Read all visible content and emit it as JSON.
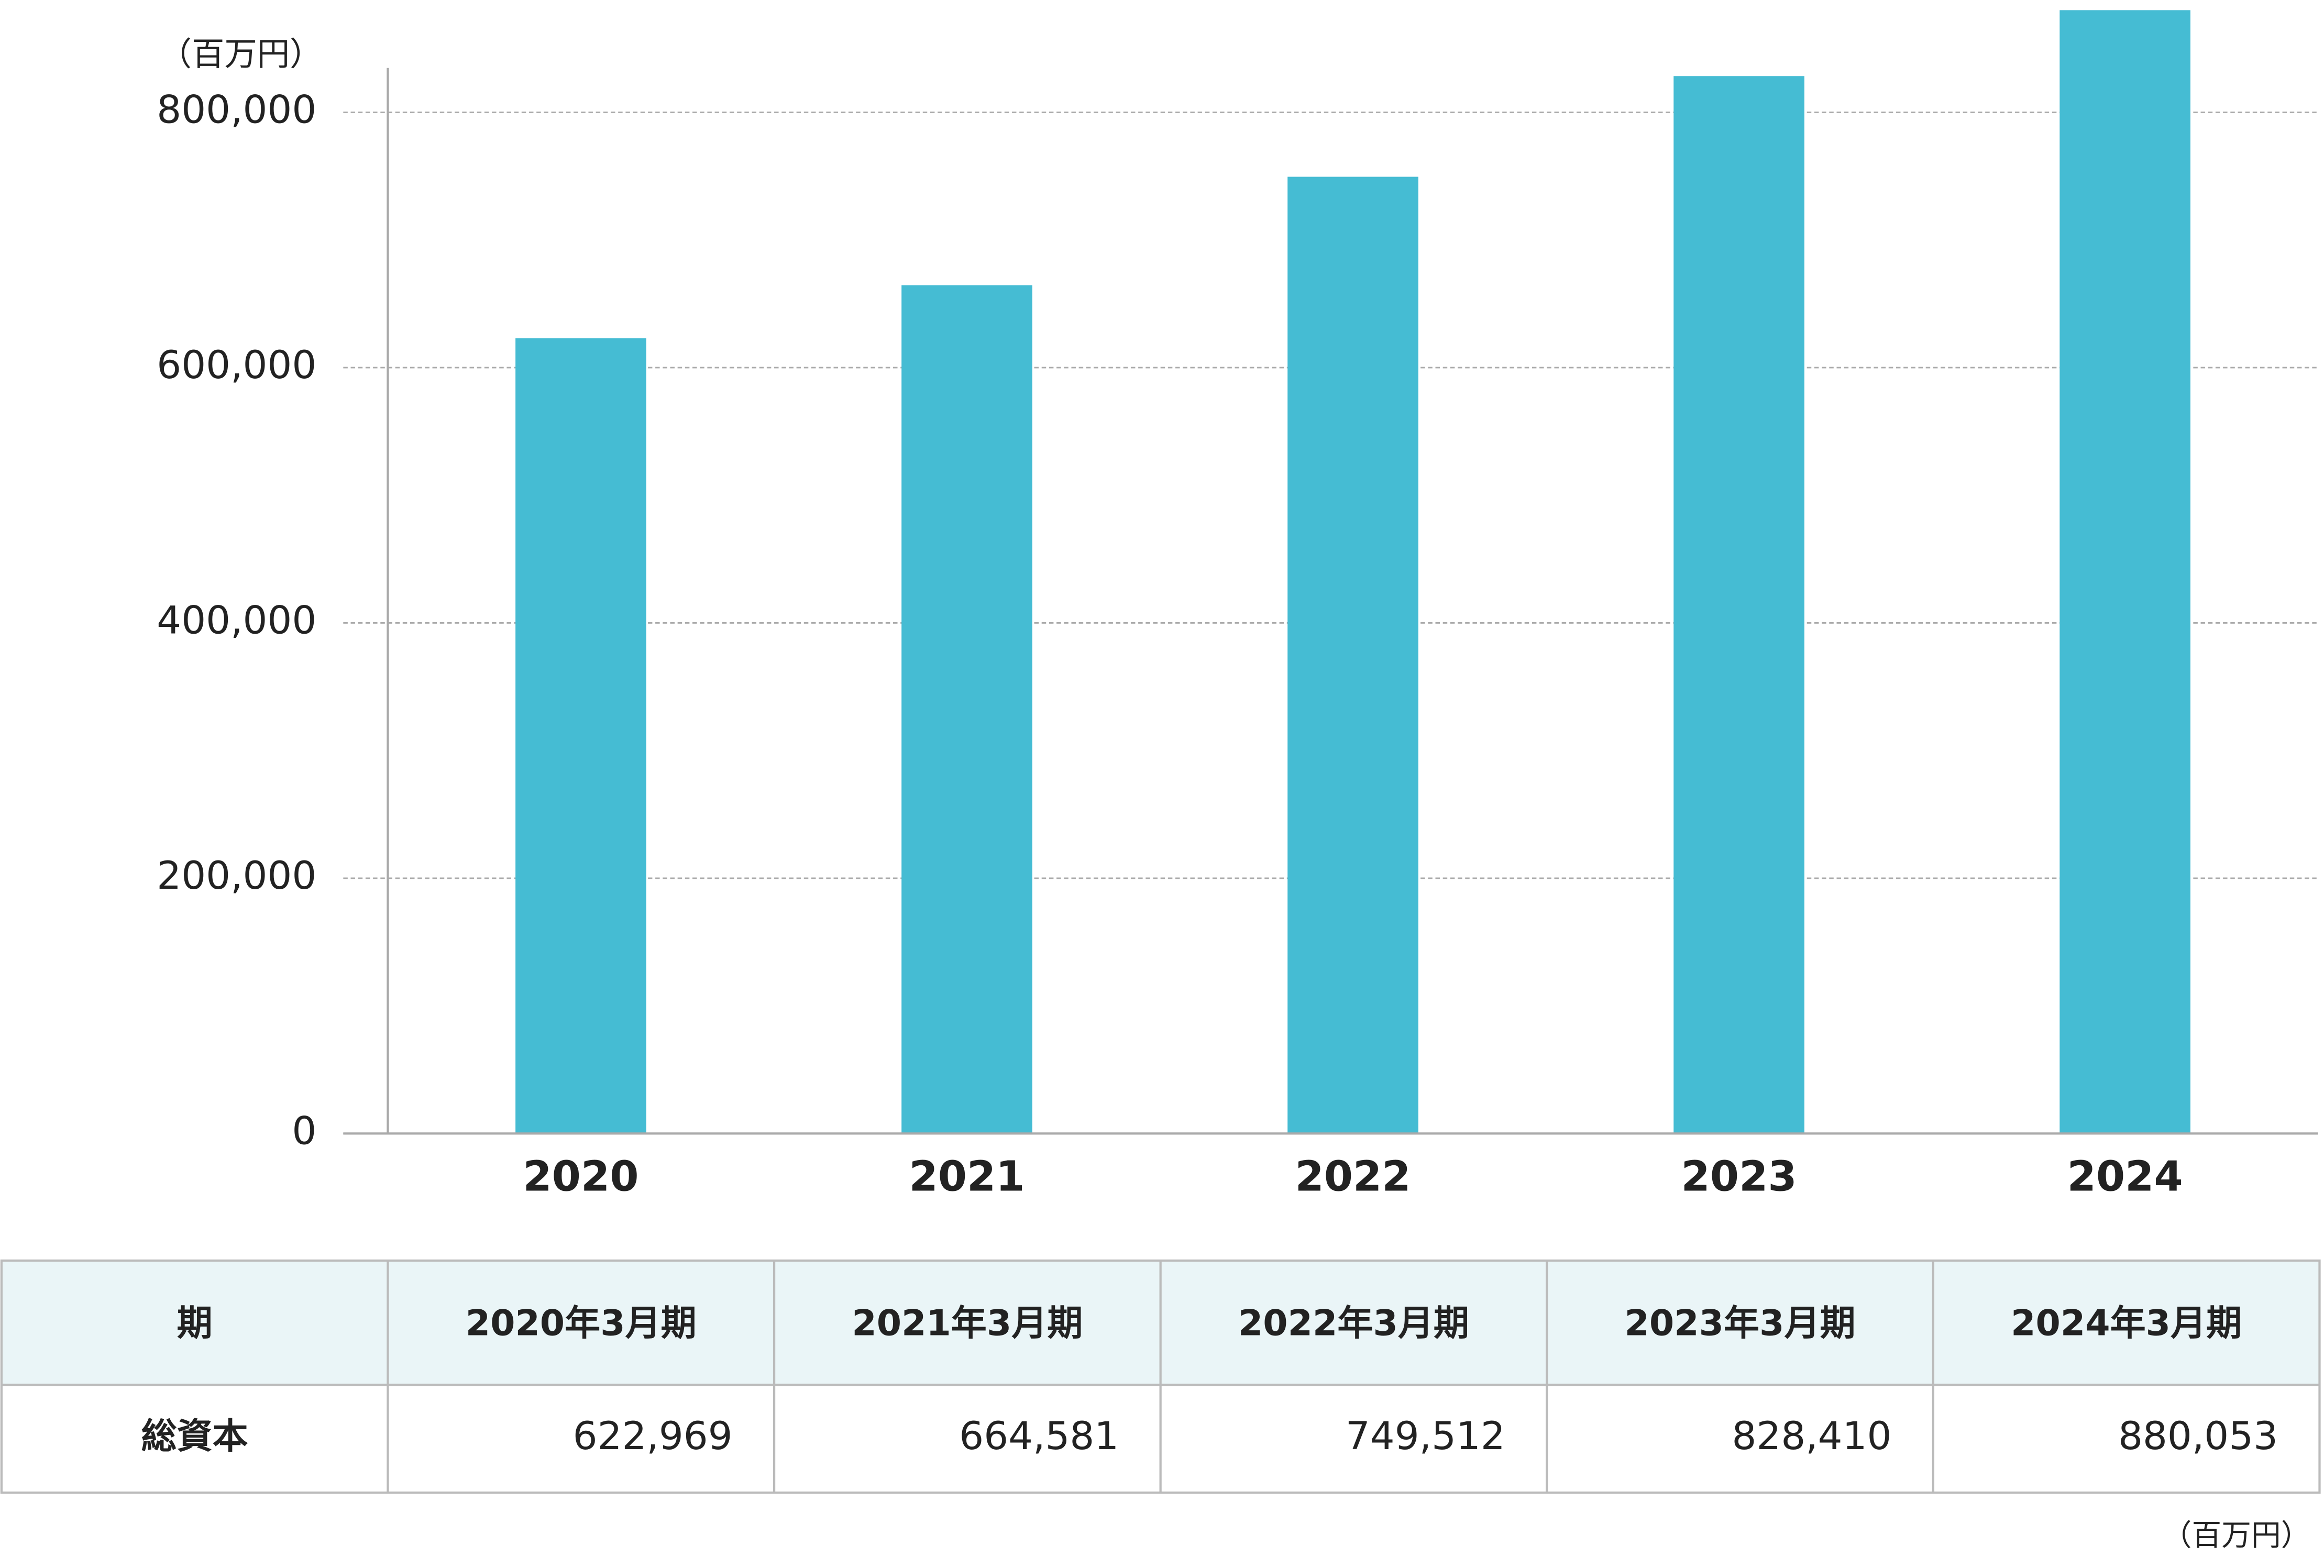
{
  "chart_data": {
    "type": "bar",
    "y_unit": "（百万円）",
    "categories": [
      "2020",
      "2021",
      "2022",
      "2023",
      "2024"
    ],
    "values": [
      622969,
      664581,
      749512,
      828410,
      880053
    ],
    "color": "#45bcd3",
    "ylim": [
      0,
      888000
    ],
    "yticks": [
      0,
      {
        "value": 200000,
        "label": "200,000"
      },
      {
        "value": 400000,
        "label": "400,000"
      },
      {
        "value": 600000,
        "label": "600,000"
      },
      {
        "value": 800000,
        "label": "800,000"
      }
    ],
    "grid": true
  },
  "table": {
    "header": [
      "期",
      "2020年3月期",
      "2021年3月期",
      "2022年3月期",
      "2023年3月期",
      "2024年3月期"
    ],
    "rows": [
      [
        "総資本",
        "622,969",
        "664,581",
        "749,512",
        "828,410",
        "880,053"
      ]
    ],
    "unit": "（百万円）"
  }
}
